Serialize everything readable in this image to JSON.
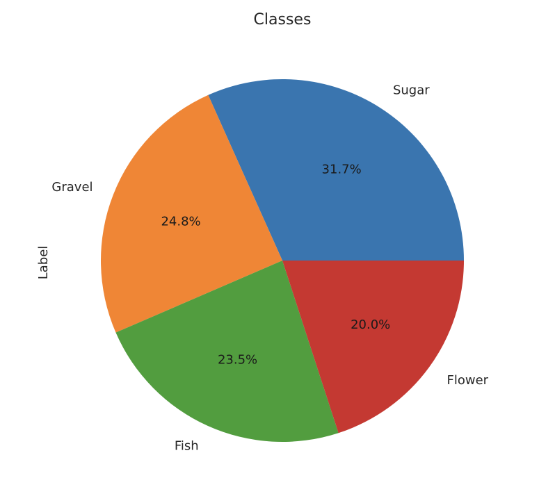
{
  "chart_data": {
    "type": "pie",
    "title": "Classes",
    "ylabel": "Label",
    "categories": [
      "Sugar",
      "Gravel",
      "Fish",
      "Flower"
    ],
    "values": [
      31.7,
      24.8,
      23.5,
      20.0
    ],
    "percent_labels": [
      "31.7%",
      "24.8%",
      "23.5%",
      "20.0%"
    ],
    "colors": [
      "#3a75af",
      "#ef8636",
      "#529d3f",
      "#c43932"
    ],
    "start_angle_deg": 0,
    "direction": "counterclockwise"
  }
}
